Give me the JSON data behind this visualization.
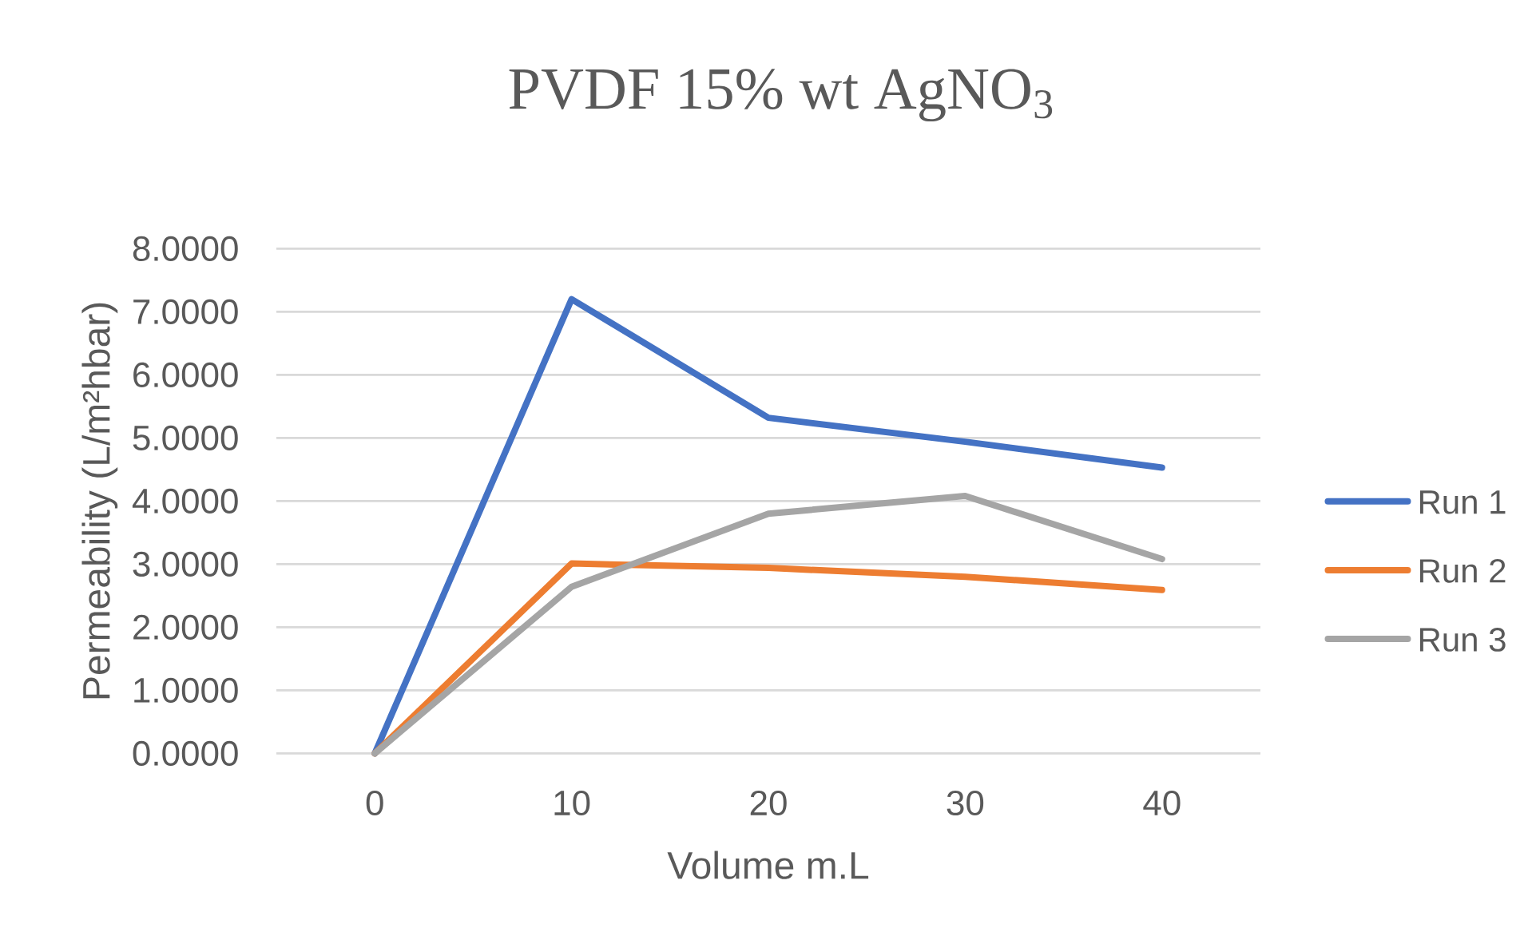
{
  "chart_data": {
    "type": "line",
    "title": "PVDF 15% wt AgNO$_{3}$",
    "xlabel": "Volume m.L",
    "ylabel": "Permeability (L/m²hbar)",
    "categories": [
      "0",
      "10",
      "20",
      "30",
      "40"
    ],
    "series": [
      {
        "name": "Run 1",
        "color": "#4472c4",
        "values": [
          0,
          7.2,
          5.32,
          4.94,
          4.53
        ]
      },
      {
        "name": "Run 2",
        "color": "#ed7d31",
        "values": [
          0,
          3.01,
          2.94,
          2.8,
          2.59
        ]
      },
      {
        "name": "Run 3",
        "color": "#a5a5a5",
        "values": [
          0,
          2.64,
          3.8,
          4.08,
          3.08
        ]
      }
    ],
    "ylim": [
      0,
      8
    ],
    "yticks": [
      {
        "value": 0,
        "label": "0.0000"
      },
      {
        "value": 1,
        "label": "1.0000"
      },
      {
        "value": 2,
        "label": "2.0000"
      },
      {
        "value": 3,
        "label": "3.0000"
      },
      {
        "value": 4,
        "label": "4.0000"
      },
      {
        "value": 5,
        "label": "5.0000"
      },
      {
        "value": 6,
        "label": "6.0000"
      },
      {
        "value": 7,
        "label": "7.0000"
      },
      {
        "value": 8,
        "label": "8.0000"
      }
    ],
    "grid": "y",
    "legend": "right",
    "marker": "none",
    "line_style": "solid"
  }
}
